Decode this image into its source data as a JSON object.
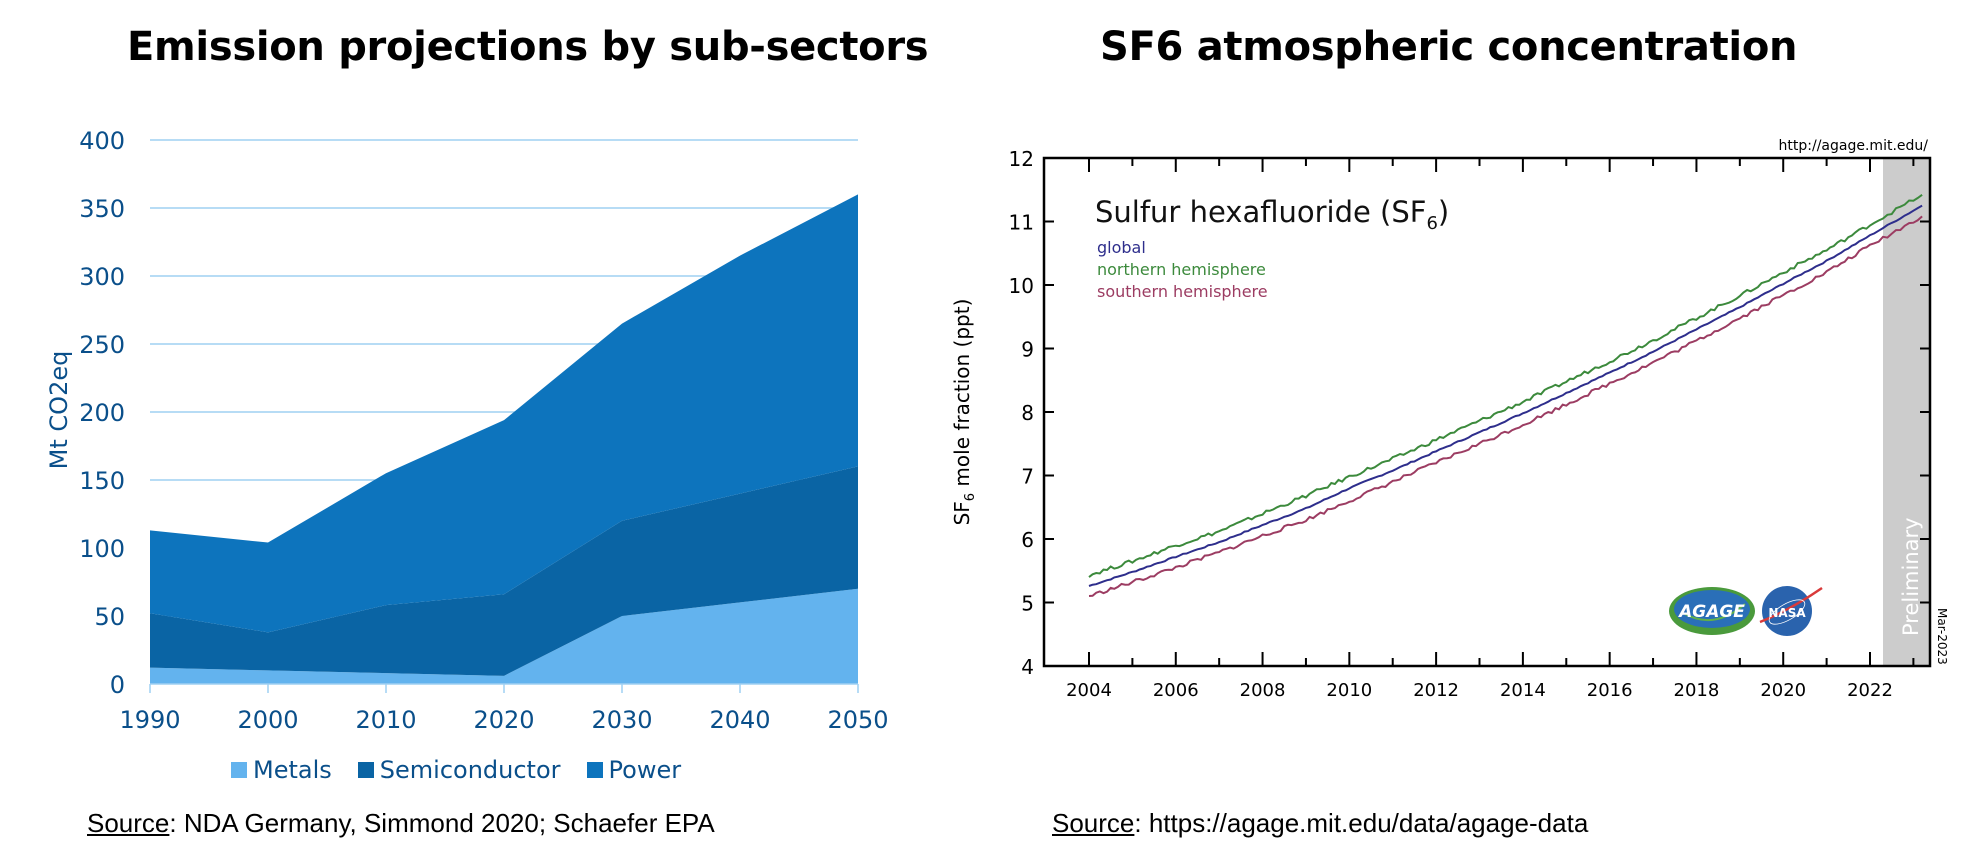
{
  "left_panel": {
    "title": "Emission projections by sub-sectors",
    "source_label": "Source",
    "source_text": ": NDA Germany, Simmond 2020; Schaefer EPA"
  },
  "right_panel": {
    "title": "SF6 atmospheric concentration",
    "source_label": "Source",
    "source_text": ": https://agage.mit.edu/data/agage-data"
  },
  "chart_data": [
    {
      "type": "area",
      "stacked": true,
      "title": "Emission projections by sub-sectors",
      "xlabel": "",
      "ylabel": "Mt CO2eq",
      "categories": [
        "1990",
        "2000",
        "2010",
        "2020",
        "2030",
        "2040",
        "2050"
      ],
      "yticks": [
        "0",
        "50",
        "100",
        "150",
        "200",
        "250",
        "300",
        "350",
        "400"
      ],
      "ylim": [
        0,
        400
      ],
      "grid": true,
      "legend_position": "bottom",
      "series": [
        {
          "name": "Metals",
          "color": "#63b3ee",
          "values": [
            12,
            10,
            8,
            6,
            50,
            60,
            70
          ]
        },
        {
          "name": "Semiconductor",
          "color": "#0a64a4",
          "values": [
            40,
            28,
            50,
            60,
            70,
            80,
            90
          ]
        },
        {
          "name": "Power",
          "color": "#0d74bd",
          "values": [
            61,
            66,
            97,
            128,
            145,
            175,
            200
          ]
        }
      ],
      "axis_color": "#0a4f8a",
      "grid_color": "#9fd0f2"
    },
    {
      "type": "line",
      "title": "Sulfur hexafluoride (SF",
      "title_subscript": "6",
      "title_suffix": ")",
      "ylabel_prefix": "SF",
      "ylabel_subscript": "6",
      "ylabel_suffix": " mole fraction (ppt)",
      "xlim": [
        2003.2,
        2023.8
      ],
      "ylim": [
        4,
        12
      ],
      "xticks": [
        "2004",
        "2006",
        "2008",
        "2010",
        "2012",
        "2014",
        "2016",
        "2018",
        "2020",
        "2022"
      ],
      "yticks": [
        "4",
        "5",
        "6",
        "7",
        "8",
        "9",
        "10",
        "11",
        "12"
      ],
      "url_label": "http://agage.mit.edu/",
      "date_label": "Mar-2023",
      "shaded_region": {
        "label": "Preliminary",
        "from": 2022.3,
        "to": 2023.8,
        "color": "#cccccc"
      },
      "logos": [
        "AGAGE",
        "NASA"
      ],
      "series": [
        {
          "name": "global",
          "color": "#2e2e8c",
          "x": [
            2004,
            2005,
            2006,
            2007,
            2008,
            2009,
            2010,
            2011,
            2012,
            2013,
            2014,
            2015,
            2016,
            2017,
            2018,
            2019,
            2020,
            2021,
            2022,
            2023.2
          ],
          "values": [
            5.26,
            5.48,
            5.72,
            5.95,
            6.22,
            6.48,
            6.8,
            7.08,
            7.38,
            7.68,
            7.98,
            8.3,
            8.62,
            8.95,
            9.3,
            9.65,
            10.02,
            10.38,
            10.78,
            11.25
          ]
        },
        {
          "name": "northern hemisphere",
          "color": "#3c8a3c",
          "x": [
            2004,
            2005,
            2006,
            2007,
            2008,
            2009,
            2010,
            2011,
            2012,
            2013,
            2014,
            2015,
            2016,
            2017,
            2018,
            2019,
            2020,
            2021,
            2022,
            2023.2
          ],
          "values": [
            5.43,
            5.65,
            5.9,
            6.12,
            6.4,
            6.68,
            6.98,
            7.26,
            7.56,
            7.86,
            8.16,
            8.48,
            8.8,
            9.13,
            9.48,
            9.83,
            10.2,
            10.55,
            10.95,
            11.42
          ]
        },
        {
          "name": "southern hemisphere",
          "color": "#9c3c62",
          "x": [
            2004,
            2005,
            2006,
            2007,
            2008,
            2009,
            2010,
            2011,
            2012,
            2013,
            2014,
            2015,
            2016,
            2017,
            2018,
            2019,
            2020,
            2021,
            2022,
            2023.2
          ],
          "values": [
            5.1,
            5.32,
            5.55,
            5.79,
            6.05,
            6.3,
            6.6,
            6.9,
            7.2,
            7.5,
            7.8,
            8.12,
            8.45,
            8.78,
            9.12,
            9.48,
            9.84,
            10.2,
            10.62,
            11.08
          ]
        }
      ]
    }
  ]
}
